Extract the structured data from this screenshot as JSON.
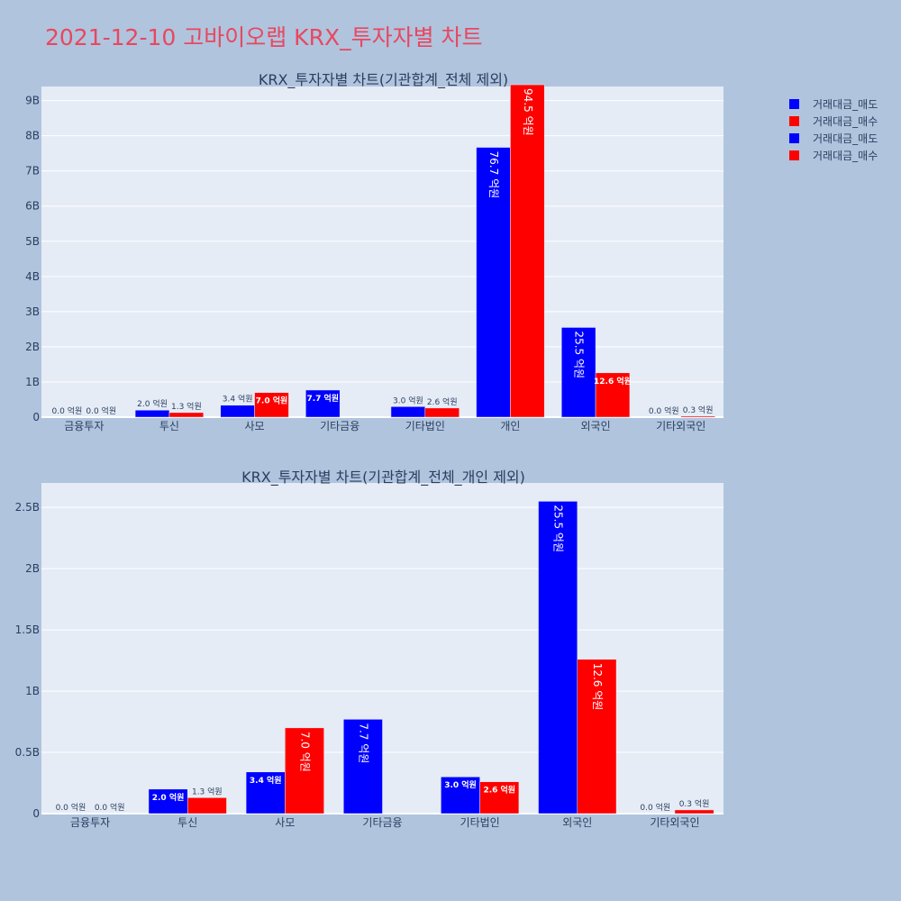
{
  "page_title": "2021-12-10 고바이오랩 KRX_투자자별 차트",
  "legend": [
    {
      "label": "거래대금_매도",
      "color": "#0000ff"
    },
    {
      "label": "거래대금_매수",
      "color": "#ff0000"
    },
    {
      "label": "거래대금_매도",
      "color": "#0000ff"
    },
    {
      "label": "거래대금_매수",
      "color": "#ff0000"
    }
  ],
  "chart_data": [
    {
      "type": "bar",
      "title": "KRX_투자자별 차트(기관합계_전체 제외)",
      "categories": [
        "금융투자",
        "투신",
        "사모",
        "기타금융",
        "기타법인",
        "개인",
        "외국인",
        "기타외국인"
      ],
      "ylim": [
        0,
        9.4
      ],
      "yticks": [
        0,
        1,
        2,
        3,
        4,
        5,
        6,
        7,
        8,
        9
      ],
      "ytick_labels": [
        "0",
        "1B",
        "2B",
        "3B",
        "4B",
        "5B",
        "6B",
        "7B",
        "8B",
        "9B"
      ],
      "series": [
        {
          "name": "거래대금_매도",
          "color": "#0000ff",
          "values": [
            0.0,
            0.2,
            0.34,
            0.77,
            0.3,
            7.67,
            2.55,
            0.0
          ],
          "labels": [
            "0.0 억원",
            "2.0 억원",
            "3.4 억원",
            "7.7 억원",
            "3.0 억원",
            "76.7 억원",
            "25.5 억원",
            "0.0 억원"
          ]
        },
        {
          "name": "거래대금_매수",
          "color": "#ff0000",
          "values": [
            0.0,
            0.13,
            0.7,
            0.0,
            0.26,
            9.45,
            1.26,
            0.03
          ],
          "labels": [
            "0.0 억원",
            "1.3 억원",
            "7.0 억원",
            "",
            "2.6 억원",
            "94.5 억원",
            "12.6 억원",
            "0.3 억원"
          ]
        }
      ]
    },
    {
      "type": "bar",
      "title": "KRX_투자자별 차트(기관합계_전체_개인 제외)",
      "categories": [
        "금융투자",
        "투신",
        "사모",
        "기타금융",
        "기타법인",
        "외국인",
        "기타외국인"
      ],
      "ylim": [
        0,
        2.7
      ],
      "yticks": [
        0,
        0.5,
        1,
        1.5,
        2,
        2.5
      ],
      "ytick_labels": [
        "0",
        "0.5B",
        "1B",
        "1.5B",
        "2B",
        "2.5B"
      ],
      "series": [
        {
          "name": "거래대금_매도",
          "color": "#0000ff",
          "values": [
            0.0,
            0.2,
            0.34,
            0.77,
            0.3,
            2.55,
            0.0
          ],
          "labels": [
            "0.0 억원",
            "2.0 억원",
            "3.4 억원",
            "7.7 억원",
            "3.0 억원",
            "25.5 억원",
            "0.0 억원"
          ]
        },
        {
          "name": "거래대금_매수",
          "color": "#ff0000",
          "values": [
            0.0,
            0.13,
            0.7,
            0.0,
            0.26,
            1.26,
            0.03
          ],
          "labels": [
            "0.0 억원",
            "1.3 억원",
            "7.0 억원",
            "",
            "2.6 억원",
            "12.6 억원",
            "0.3 억원"
          ]
        }
      ]
    }
  ]
}
